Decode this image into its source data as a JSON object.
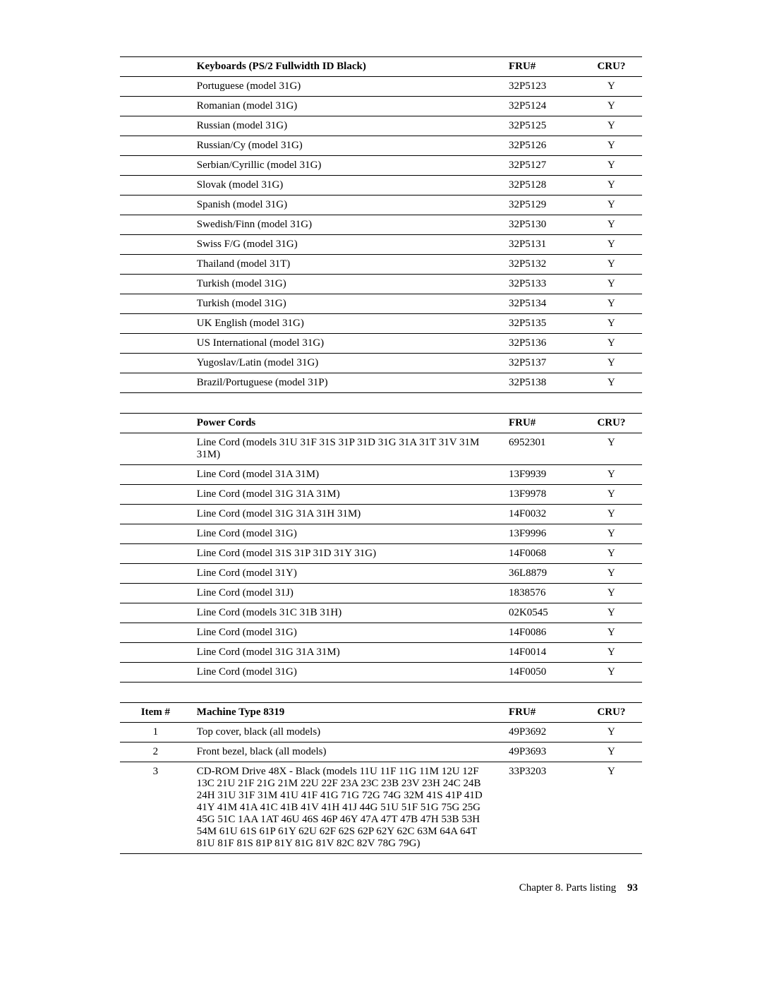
{
  "table1": {
    "headers": {
      "desc": "Keyboards (PS/2 Fullwidth ID Black)",
      "fru": "FRU#",
      "cru": "CRU?"
    },
    "rows": [
      {
        "desc": "Portuguese (model 31G)",
        "fru": "32P5123",
        "cru": "Y"
      },
      {
        "desc": "Romanian (model 31G)",
        "fru": "32P5124",
        "cru": "Y"
      },
      {
        "desc": "Russian (model 31G)",
        "fru": "32P5125",
        "cru": "Y"
      },
      {
        "desc": "Russian/Cy (model 31G)",
        "fru": "32P5126",
        "cru": "Y"
      },
      {
        "desc": "Serbian/Cyrillic (model 31G)",
        "fru": "32P5127",
        "cru": "Y"
      },
      {
        "desc": "Slovak (model 31G)",
        "fru": "32P5128",
        "cru": "Y"
      },
      {
        "desc": "Spanish (model 31G)",
        "fru": "32P5129",
        "cru": "Y"
      },
      {
        "desc": "Swedish/Finn (model 31G)",
        "fru": "32P5130",
        "cru": "Y"
      },
      {
        "desc": "Swiss F/G (model 31G)",
        "fru": "32P5131",
        "cru": "Y"
      },
      {
        "desc": "Thailand (model 31T)",
        "fru": "32P5132",
        "cru": "Y"
      },
      {
        "desc": "Turkish (model 31G)",
        "fru": "32P5133",
        "cru": "Y"
      },
      {
        "desc": "Turkish (model 31G)",
        "fru": "32P5134",
        "cru": "Y"
      },
      {
        "desc": "UK English (model 31G)",
        "fru": "32P5135",
        "cru": "Y"
      },
      {
        "desc": "US International (model 31G)",
        "fru": "32P5136",
        "cru": "Y"
      },
      {
        "desc": "Yugoslav/Latin (model 31G)",
        "fru": "32P5137",
        "cru": "Y"
      },
      {
        "desc": "Brazil/Portuguese (model 31P)",
        "fru": "32P5138",
        "cru": "Y"
      }
    ]
  },
  "table2": {
    "headers": {
      "desc": "Power Cords",
      "fru": "FRU#",
      "cru": "CRU?"
    },
    "rows": [
      {
        "desc": "Line Cord (models 31U 31F 31S 31P 31D 31G 31A 31T 31V 31M 31M)",
        "fru": "6952301",
        "cru": "Y"
      },
      {
        "desc": "Line Cord (model 31A 31M)",
        "fru": "13F9939",
        "cru": "Y"
      },
      {
        "desc": "Line Cord (model 31G 31A 31M)",
        "fru": "13F9978",
        "cru": "Y"
      },
      {
        "desc": "Line Cord (model 31G 31A 31H 31M)",
        "fru": "14F0032",
        "cru": "Y"
      },
      {
        "desc": "Line Cord (model 31G)",
        "fru": "13F9996",
        "cru": "Y"
      },
      {
        "desc": "Line Cord (model 31S 31P 31D 31Y 31G)",
        "fru": "14F0068",
        "cru": "Y"
      },
      {
        "desc": "Line Cord (model 31Y)",
        "fru": "36L8879",
        "cru": "Y"
      },
      {
        "desc": "Line Cord (model 31J)",
        "fru": "1838576",
        "cru": "Y"
      },
      {
        "desc": "Line Cord (models 31C 31B 31H)",
        "fru": "02K0545",
        "cru": "Y"
      },
      {
        "desc": "Line Cord (model 31G)",
        "fru": "14F0086",
        "cru": "Y"
      },
      {
        "desc": "Line Cord (model 31G 31A 31M)",
        "fru": "14F0014",
        "cru": "Y"
      },
      {
        "desc": "Line Cord (model 31G)",
        "fru": "14F0050",
        "cru": "Y"
      }
    ]
  },
  "table3": {
    "headers": {
      "item": "Item #",
      "desc": "Machine Type 8319",
      "fru": "FRU#",
      "cru": "CRU?"
    },
    "rows": [
      {
        "item": "1",
        "desc": "Top cover, black (all models)",
        "fru": "49P3692",
        "cru": "Y"
      },
      {
        "item": "2",
        "desc": "Front bezel, black (all models)",
        "fru": "49P3693",
        "cru": "Y"
      },
      {
        "item": "3",
        "desc": "CD-ROM Drive 48X - Black (models 11U 11F 11G 11M 12U 12F 13C 21U 21F 21G 21M 22U 22F 23A 23C 23B 23V 23H 24C 24B 24H 31U 31F 31M 41U 41F 41G 71G 72G 74G 32M 41S 41P 41D 41Y 41M 41A 41C 41B 41V 41H 41J 44G 51U 51F 51G 75G 25G 45G 51C 1AA 1AT 46U 46S 46P 46Y 47A 47T 47B 47H 53B 53H 54M 61U 61S 61P 61Y 62U 62F 62S 62P 62Y 62C 63M 64A 64T 81U 81F 81S 81P 81Y 81G 81V 82C 82V 78G 79G)",
        "fru": "33P3203",
        "cru": "Y"
      }
    ]
  },
  "footer": {
    "chapter": "Chapter 8. Parts listing",
    "page": "93"
  }
}
